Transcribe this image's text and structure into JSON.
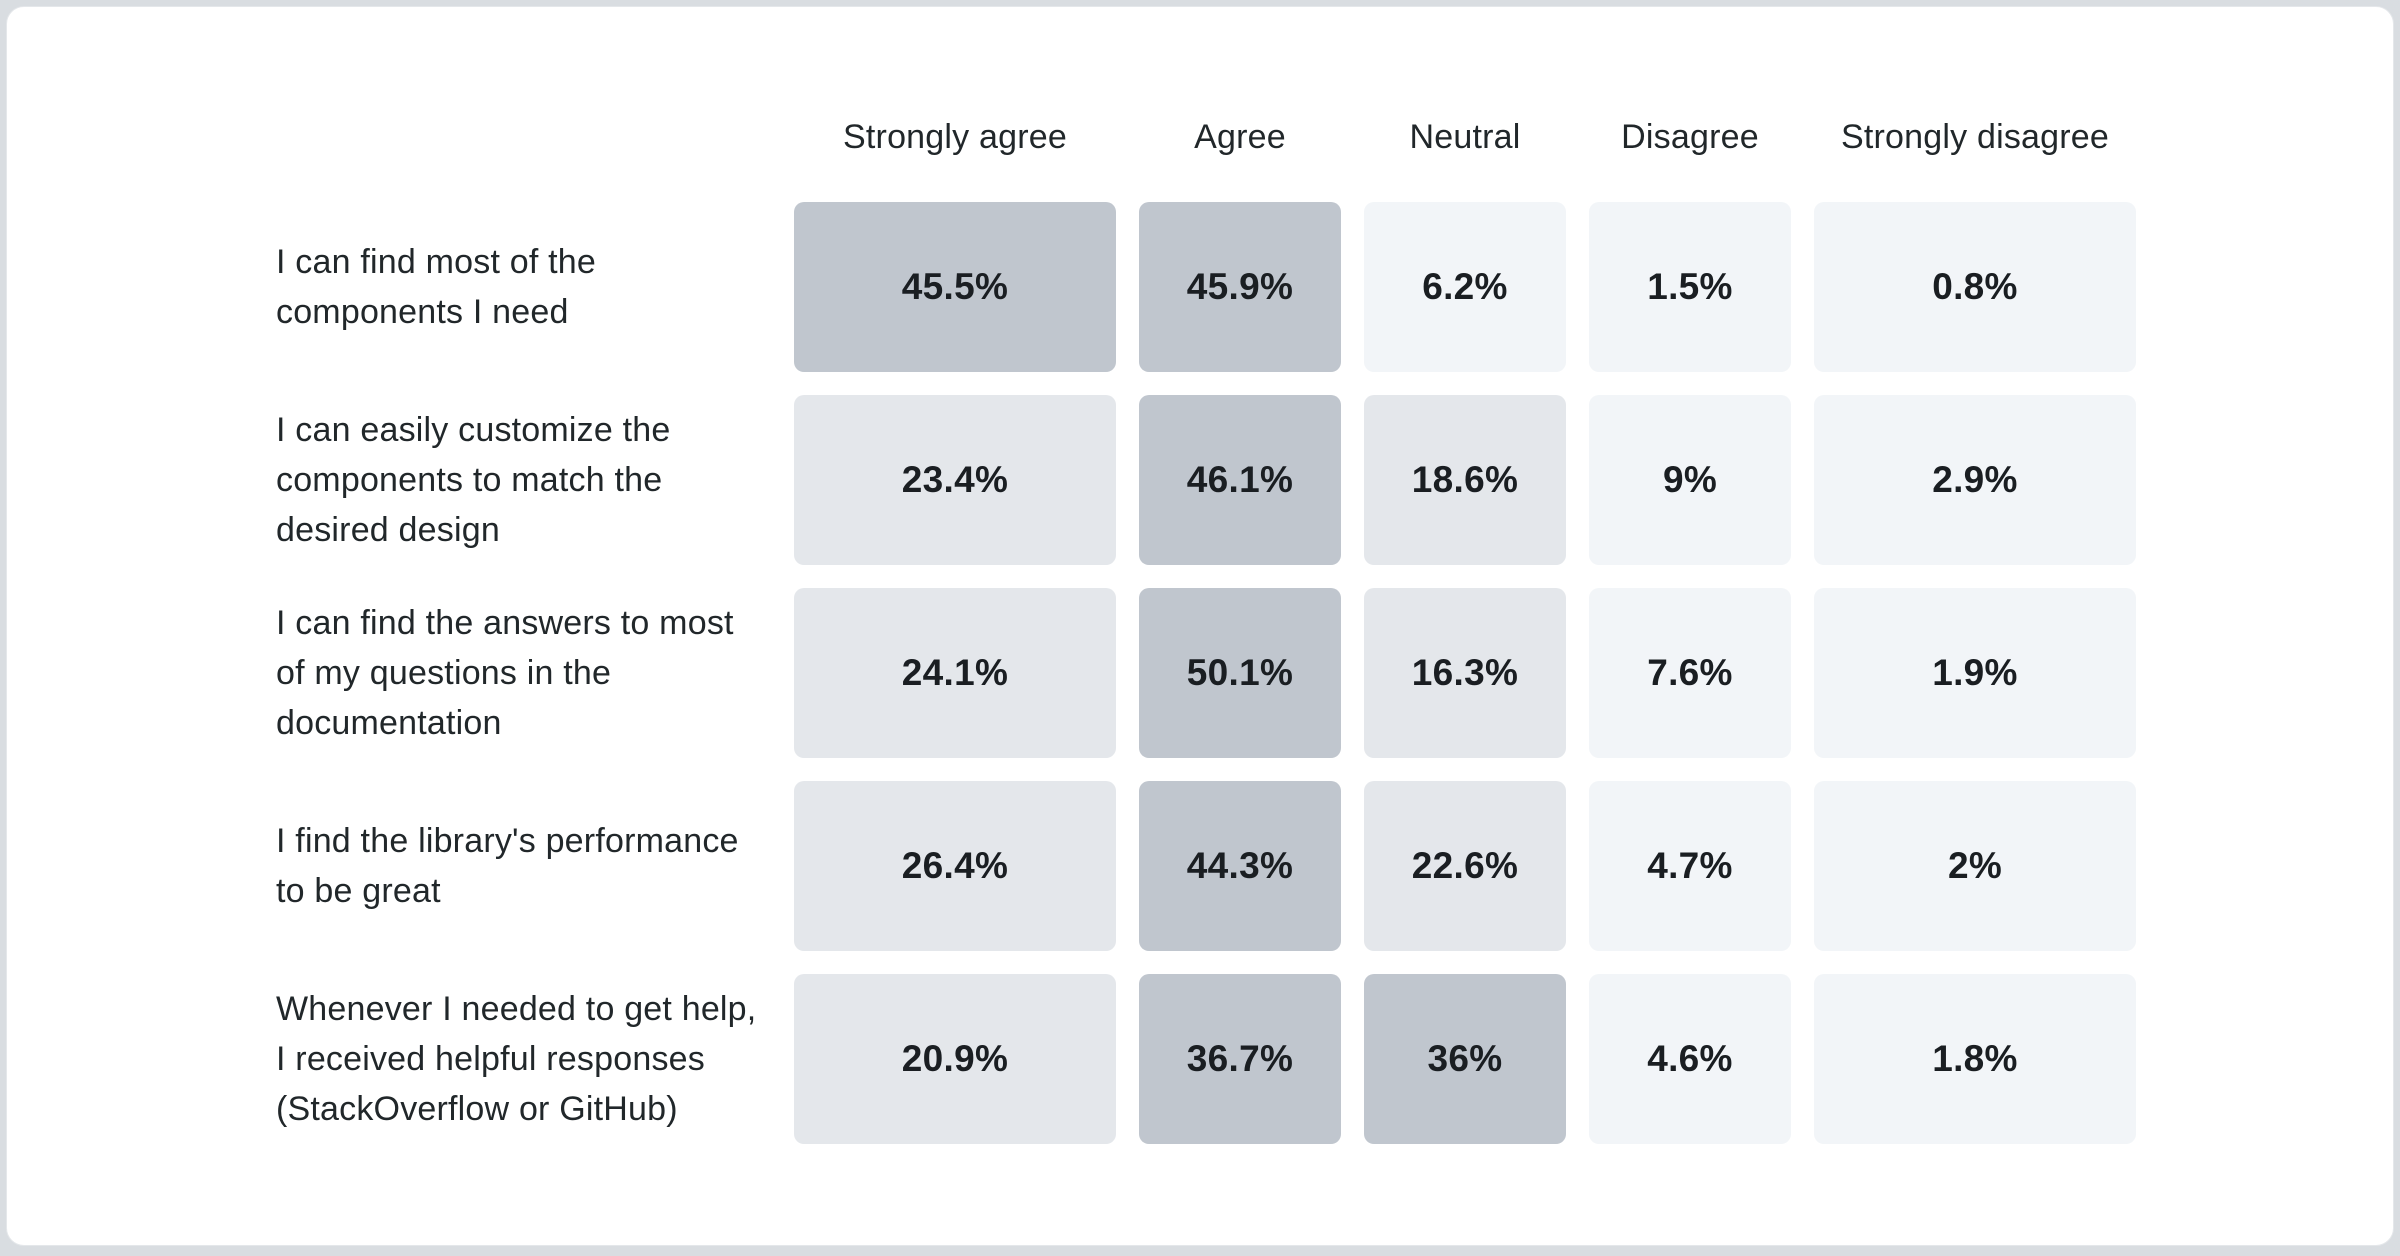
{
  "page": {
    "background": "#d9dde1",
    "card_background": "#ffffff",
    "card_border": "#e4e7ea"
  },
  "chart_data": {
    "type": "heatmap",
    "columns": [
      "Strongly agree",
      "Agree",
      "Neutral",
      "Disagree",
      "Strongly disagree"
    ],
    "rows": [
      {
        "label": "I can find most of the\ncomponents I need",
        "values": [
          45.5,
          45.9,
          6.2,
          1.5,
          0.8
        ],
        "display": [
          "45.5%",
          "45.9%",
          "6.2%",
          "1.5%",
          "0.8%"
        ]
      },
      {
        "label": "I can easily customize the\ncomponents to match the\ndesired design",
        "values": [
          23.4,
          46.1,
          18.6,
          9,
          2.9
        ],
        "display": [
          "23.4%",
          "46.1%",
          "18.6%",
          "9%",
          "2.9%"
        ]
      },
      {
        "label": "I can find the answers to most\nof my questions in the\ndocumentation",
        "values": [
          24.1,
          50.1,
          16.3,
          7.6,
          1.9
        ],
        "display": [
          "24.1%",
          "50.1%",
          "16.3%",
          "7.6%",
          "1.9%"
        ]
      },
      {
        "label": "I find the library's performance\nto be great",
        "values": [
          26.4,
          44.3,
          22.6,
          4.7,
          2
        ],
        "display": [
          "26.4%",
          "44.3%",
          "22.6%",
          "4.7%",
          "2%"
        ]
      },
      {
        "label": "Whenever I needed to get help,\nI received helpful responses\n(StackOverflow or GitHub)",
        "values": [
          20.9,
          36.7,
          36,
          4.6,
          1.8
        ],
        "display": [
          "20.9%",
          "36.7%",
          "36%",
          "4.6%",
          "1.8%"
        ]
      }
    ],
    "color_scale": {
      "thresholds": [
        10,
        30
      ],
      "colors": [
        "#f2f5f8",
        "#e4e7eb",
        "#c0c6ce"
      ]
    },
    "layout": {
      "legend": false,
      "grid": false,
      "value_format": "percent"
    }
  }
}
